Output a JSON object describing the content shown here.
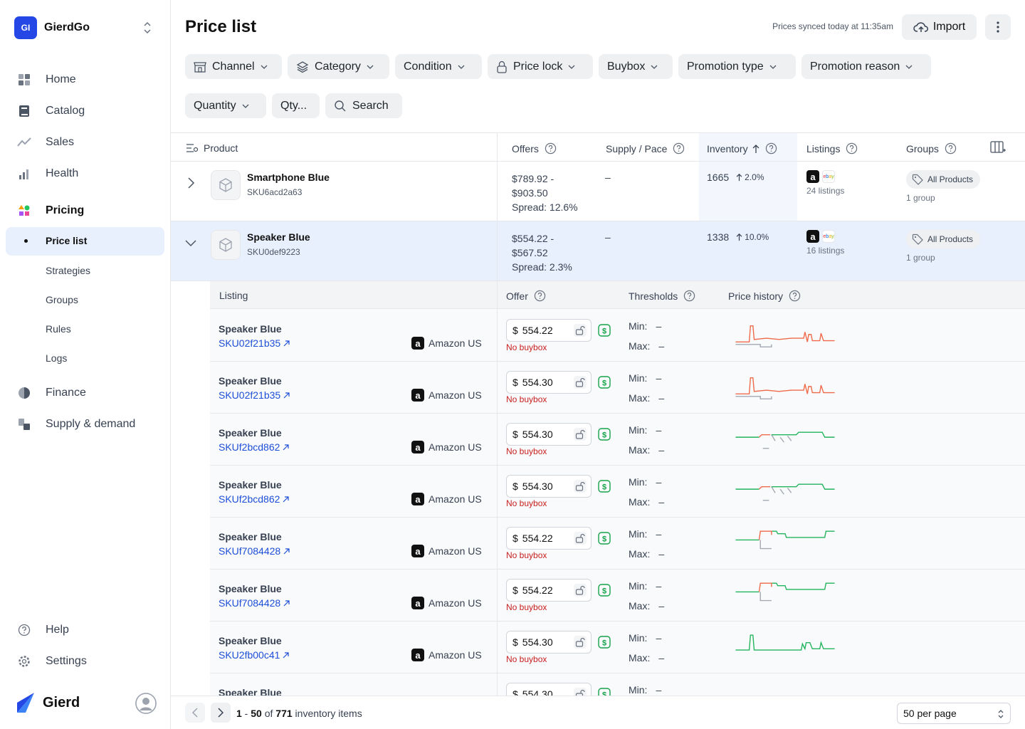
{
  "org": {
    "initials": "GI",
    "name": "GierdGo"
  },
  "nav": {
    "home": "Home",
    "catalog": "Catalog",
    "sales": "Sales",
    "health": "Health",
    "pricing": "Pricing",
    "pricing_sub": [
      "Price list",
      "Strategies",
      "Groups",
      "Rules",
      "Logs"
    ],
    "finance": "Finance",
    "supply": "Supply & demand",
    "help": "Help",
    "settings": "Settings"
  },
  "brand": {
    "name": "Gierd"
  },
  "header": {
    "title": "Price list",
    "sync_text": "Prices synced today at 11:35am",
    "import_label": "Import"
  },
  "filters": [
    "Channel",
    "Category",
    "Condition",
    "Price lock",
    "Buybox",
    "Promotion type",
    "Promotion reason",
    "Quantity",
    "Qty...",
    "Search"
  ],
  "columns": {
    "product": "Product",
    "offers": "Offers",
    "supply": "Supply / Pace",
    "inventory": "Inventory",
    "listings": "Listings",
    "groups": "Groups"
  },
  "products": [
    {
      "name": "Smartphone Blue",
      "sku": "SKU6acd2a63",
      "offer_range_1": "$789.92 -",
      "offer_range_2": "$903.50",
      "spread": "Spread: 12.6%",
      "supply": "–",
      "inventory": "1665",
      "trend": "2.0%",
      "listings": "24 listings",
      "group": "All Products",
      "groups_count": "1 group"
    },
    {
      "name": "Speaker Blue",
      "sku": "SKU0def9223",
      "offer_range_1": "$554.22 -",
      "offer_range_2": "$567.52",
      "spread": "Spread: 2.3%",
      "supply": "–",
      "inventory": "1338",
      "trend": "10.0%",
      "listings": "16 listings",
      "group": "All Products",
      "groups_count": "1 group"
    }
  ],
  "sub_columns": {
    "listing": "Listing",
    "offer": "Offer",
    "thresholds": "Thresholds",
    "history": "Price history"
  },
  "listings": [
    {
      "name": "Speaker Blue",
      "sku": "SKU02f21b35",
      "channel": "Amazon US",
      "price": "554.22",
      "buybox": "No buybox",
      "min": "–",
      "max": "–"
    },
    {
      "name": "Speaker Blue",
      "sku": "SKU02f21b35",
      "channel": "Amazon US",
      "price": "554.30",
      "buybox": "No buybox",
      "min": "–",
      "max": "–"
    },
    {
      "name": "Speaker Blue",
      "sku": "SKUf2bcd862",
      "channel": "Amazon US",
      "price": "554.30",
      "buybox": "No buybox",
      "min": "–",
      "max": "–"
    },
    {
      "name": "Speaker Blue",
      "sku": "SKUf2bcd862",
      "channel": "Amazon US",
      "price": "554.30",
      "buybox": "No buybox",
      "min": "–",
      "max": "–"
    },
    {
      "name": "Speaker Blue",
      "sku": "SKUf7084428",
      "channel": "Amazon US",
      "price": "554.22",
      "buybox": "No buybox",
      "min": "–",
      "max": "–"
    },
    {
      "name": "Speaker Blue",
      "sku": "SKUf7084428",
      "channel": "Amazon US",
      "price": "554.22",
      "buybox": "No buybox",
      "min": "–",
      "max": "–"
    },
    {
      "name": "Speaker Blue",
      "sku": "SKU2fb00c41",
      "channel": "Amazon US",
      "price": "554.30",
      "buybox": "No buybox",
      "min": "–",
      "max": "–"
    },
    {
      "name": "Speaker Blue",
      "sku": "",
      "channel": "",
      "price": "554.30",
      "buybox": "",
      "min": "–",
      "max": ""
    }
  ],
  "labels": {
    "currency": "$",
    "min": "Min:",
    "max": "Max:",
    "dash": "–"
  },
  "pagination": {
    "range_start": "1",
    "range_end": "50",
    "of": "of",
    "total": "771",
    "suffix": "inventory items",
    "per_page": "50 per page"
  },
  "colors": {
    "accent": "#2547e6",
    "link": "#1d4ed8",
    "error": "#c81e1e",
    "spark_red": "#ef6a4a",
    "spark_green": "#22b45e",
    "spark_gray": "#a3a8b3"
  }
}
